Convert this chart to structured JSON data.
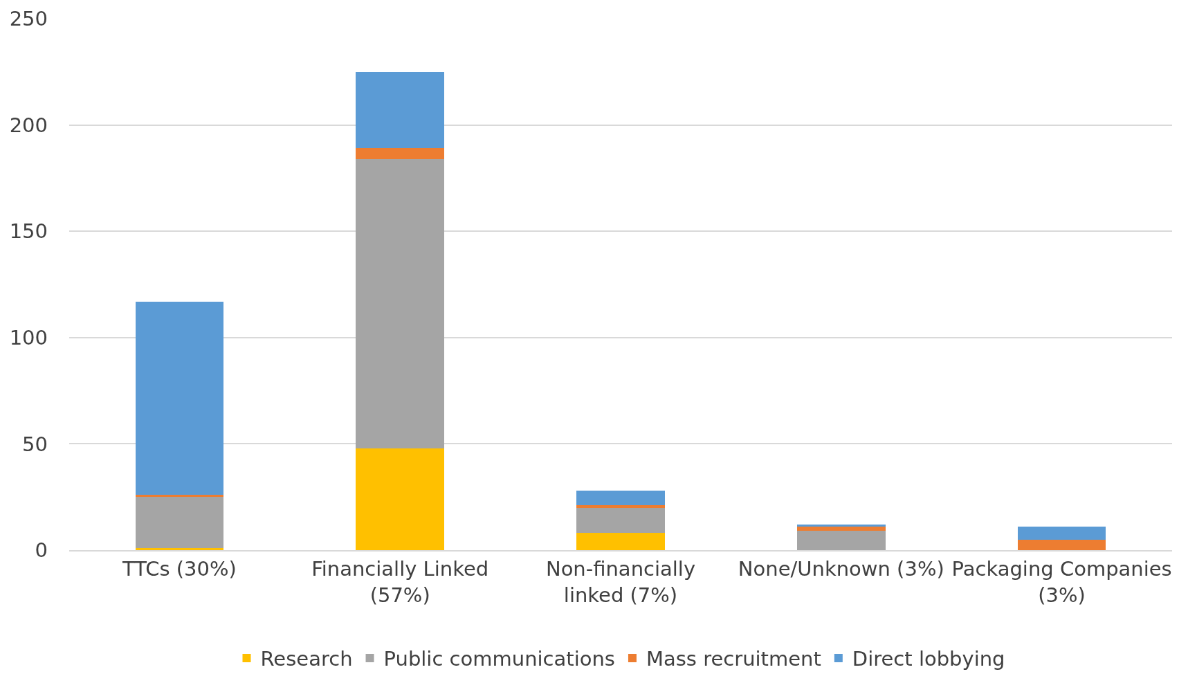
{
  "chart_data": {
    "type": "bar",
    "stacked": true,
    "categories": [
      "TTCs (30%)",
      "Financially Linked (57%)",
      "Non-financially linked (7%)",
      "None/Unknown (3%)",
      "Packaging Companies (3%)"
    ],
    "series": [
      {
        "name": "Research",
        "color": "#ffc000",
        "values": [
          1,
          48,
          8,
          0,
          0
        ]
      },
      {
        "name": "Public communications",
        "color": "#a5a5a5",
        "values": [
          24,
          136,
          12,
          9,
          0
        ]
      },
      {
        "name": "Mass recruitment",
        "color": "#ed7d31",
        "values": [
          1,
          5,
          1,
          2,
          5
        ]
      },
      {
        "name": "Direct lobbying",
        "color": "#5b9bd5",
        "values": [
          91,
          36,
          7,
          1,
          6
        ]
      }
    ],
    "ylim": [
      0,
      250
    ],
    "yticks": [
      0,
      50,
      100,
      150,
      200,
      250
    ],
    "grid": "y",
    "legend": "bottom"
  }
}
